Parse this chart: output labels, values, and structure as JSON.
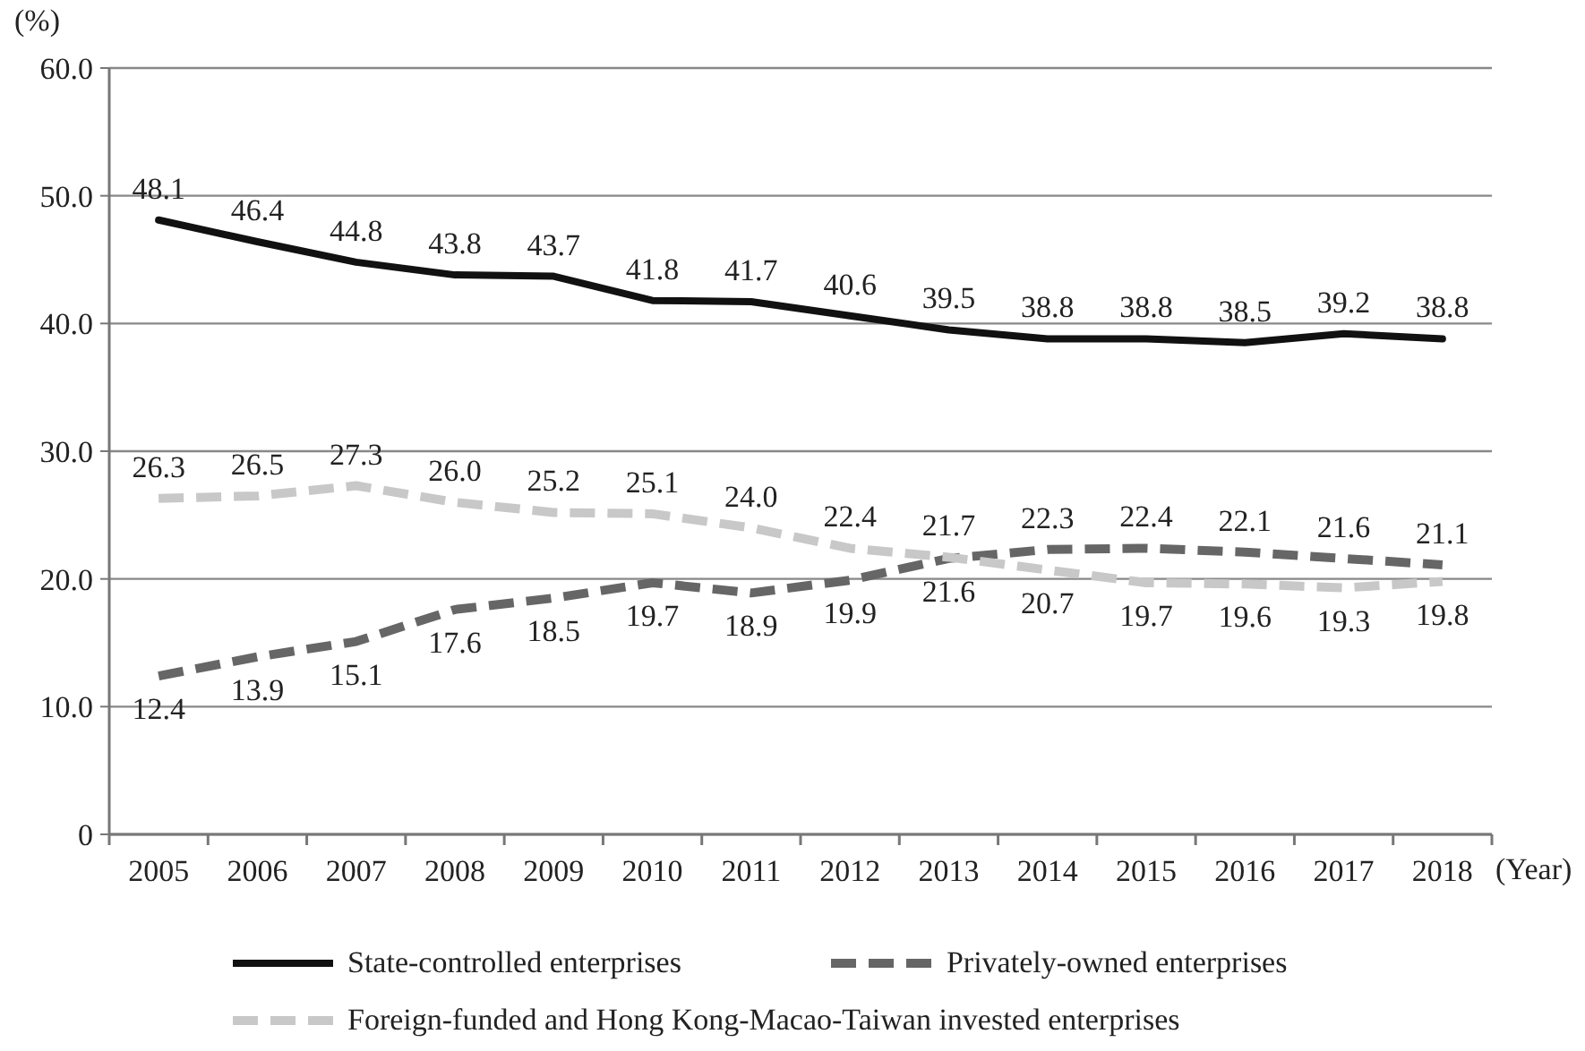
{
  "chart_data": {
    "type": "line",
    "ylabel": "(%)",
    "xlabel": "(Year)",
    "categories": [
      "2005",
      "2006",
      "2007",
      "2008",
      "2009",
      "2010",
      "2011",
      "2012",
      "2013",
      "2014",
      "2015",
      "2016",
      "2017",
      "2018"
    ],
    "series": [
      {
        "name": "State-controlled enterprises",
        "color": "#111111",
        "line_style": "solid",
        "values": [
          48.1,
          46.4,
          44.8,
          43.8,
          43.7,
          41.8,
          41.7,
          40.6,
          39.5,
          38.8,
          38.8,
          38.5,
          39.2,
          38.8
        ],
        "value_labels": [
          "48.1",
          "46.4",
          "44.8",
          "43.8",
          "43.7",
          "41.8",
          "41.7",
          "40.6",
          "39.5",
          "38.8",
          "38.8",
          "38.5",
          "39.2",
          "38.8"
        ]
      },
      {
        "name": "Privately-owned enterprises",
        "color": "#666666",
        "line_style": "dashed",
        "values": [
          12.4,
          13.9,
          15.1,
          17.6,
          18.5,
          19.7,
          18.9,
          19.9,
          21.6,
          22.3,
          22.4,
          22.1,
          21.6,
          21.1
        ],
        "value_labels": [
          "12.4",
          "13.9",
          "15.1",
          "17.6",
          "18.5",
          "19.7",
          "18.9",
          "19.9",
          "21.6",
          "22.3",
          "22.4",
          "22.1",
          "21.6",
          "21.1"
        ]
      },
      {
        "name": "Foreign-funded and Hong Kong-Macao-Taiwan invested enterprises",
        "color": "#c8c8c8",
        "line_style": "dashed",
        "values": [
          26.3,
          26.5,
          27.3,
          26.0,
          25.2,
          25.1,
          24.0,
          22.4,
          21.7,
          20.7,
          19.7,
          19.6,
          19.3,
          19.8
        ],
        "value_labels": [
          "26.3",
          "26.5",
          "27.3",
          "26.0",
          "25.2",
          "25.1",
          "24.0",
          "22.4",
          "21.7",
          "20.7",
          "19.7",
          "19.6",
          "19.3",
          "19.8"
        ]
      }
    ],
    "ylim": [
      0,
      60
    ],
    "yticks": [
      0,
      {
        "value": 10,
        "label": "10.0"
      },
      {
        "value": 20,
        "label": "20.0"
      },
      {
        "value": 30,
        "label": "30.0"
      },
      {
        "value": 40,
        "label": "40.0"
      },
      {
        "value": 50,
        "label": "50.0"
      },
      {
        "value": 60,
        "label": "60.0"
      }
    ],
    "grid": "y",
    "legend": "bottom",
    "marker": "none"
  }
}
